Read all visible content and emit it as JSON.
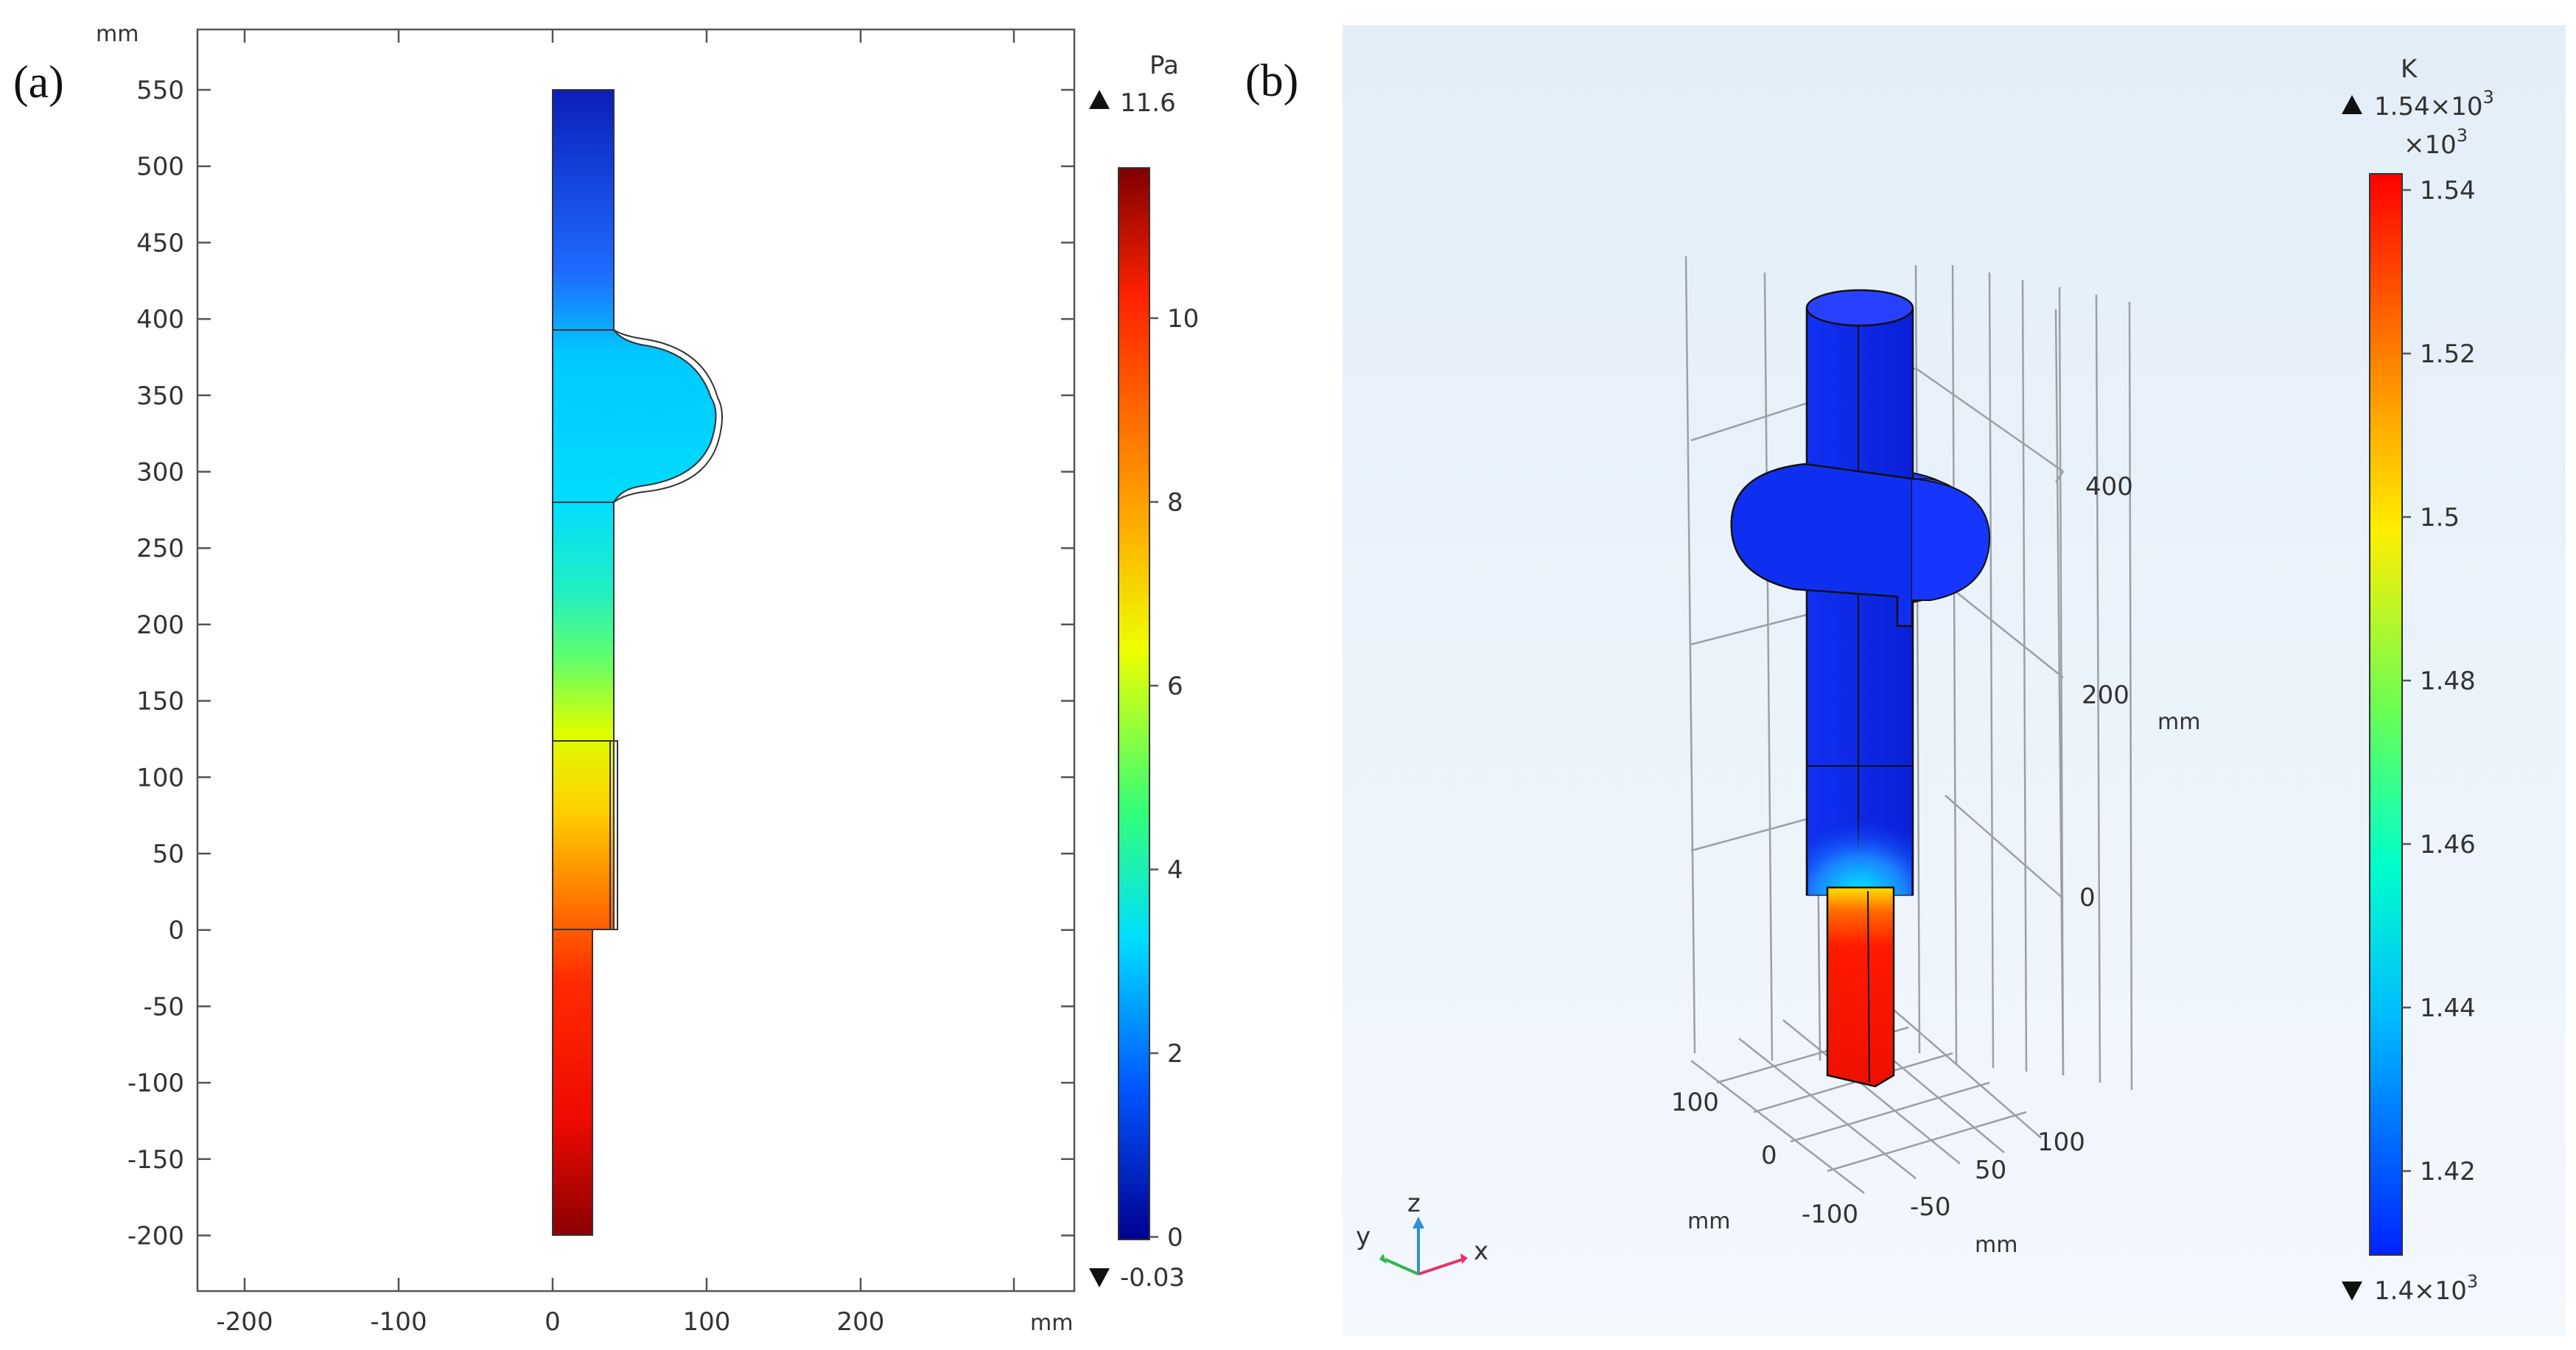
{
  "panel_a": {
    "label": "(a)",
    "y_unit": "mm",
    "x_unit": "mm",
    "y_ticks": [
      "550",
      "500",
      "450",
      "400",
      "350",
      "300",
      "250",
      "200",
      "150",
      "100",
      "50",
      "0",
      "-50",
      "-100",
      "-150",
      "-200"
    ],
    "x_ticks": [
      "-200",
      "-100",
      "0",
      "100",
      "200"
    ],
    "colorbar": {
      "unit": "Pa",
      "max_label": "11.6",
      "min_label": "-0.03",
      "ticks": [
        "10",
        "8",
        "6",
        "4",
        "2",
        "0"
      ]
    }
  },
  "panel_b": {
    "label": "(b)",
    "z_ticks": [
      "400",
      "200",
      "0"
    ],
    "z_unit": "mm",
    "y_ticks": [
      "100",
      "0",
      "-100"
    ],
    "y_unit": "mm",
    "x_ticks": [
      "-50",
      "50",
      "100"
    ],
    "x_unit": "mm",
    "triad": {
      "x": "x",
      "y": "y",
      "z": "z"
    },
    "colorbar": {
      "unit": "K",
      "max_label": "1.54×10",
      "max_exp": "3",
      "scale_label": "×10",
      "scale_exp": "3",
      "min_label": "1.4×10",
      "min_exp": "3",
      "ticks": [
        "1.54",
        "1.52",
        "1.5",
        "1.48",
        "1.46",
        "1.44",
        "1.42"
      ]
    }
  },
  "colors": {
    "background_b": "#eaf3fb",
    "jet_dark_red": "#7f0000",
    "jet_red": "#ff1a00",
    "jet_yellow": "#ffff00",
    "jet_cyan": "#00e0ff",
    "jet_blue": "#0033ff",
    "jet_dark_blue": "#00008f"
  }
}
